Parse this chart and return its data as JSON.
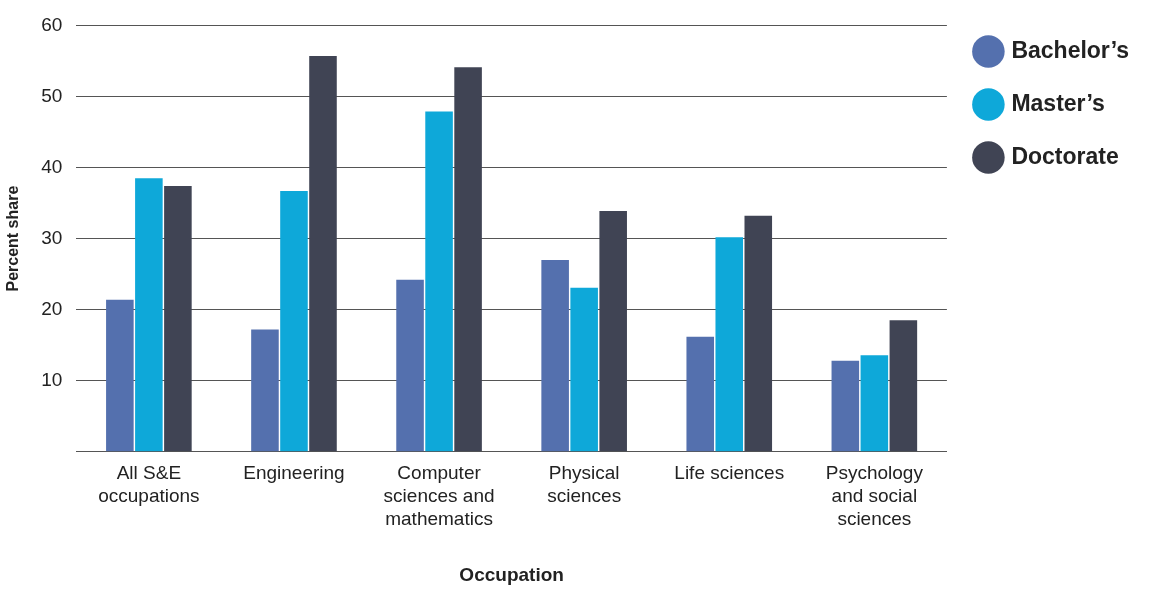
{
  "chart_data": {
    "type": "bar",
    "xlabel": "Occupation",
    "ylabel": "Percent share",
    "categories": [
      "All S&E occupations",
      "Engineering",
      "Computer sciences and mathematics",
      "Physical sciences",
      "Life sciences",
      "Psychology and social sciences"
    ],
    "series": [
      {
        "name": "Bachelor’s",
        "color": "#5470ae",
        "values": [
          21.4,
          17.2,
          24.2,
          27.0,
          16.2,
          12.8
        ]
      },
      {
        "name": "Master’s",
        "color": "#0ea8d9",
        "values": [
          38.5,
          36.7,
          47.9,
          23.1,
          30.2,
          13.6
        ]
      },
      {
        "name": "Doctorate",
        "color": "#404454",
        "values": [
          37.4,
          55.7,
          54.1,
          33.9,
          33.2,
          18.5
        ]
      }
    ],
    "ylim": [
      0,
      60
    ],
    "yticks": [
      {
        "value": 0,
        "label": null
      },
      10,
      20,
      30,
      40,
      50,
      60
    ],
    "grid": "y",
    "legend": "right"
  }
}
